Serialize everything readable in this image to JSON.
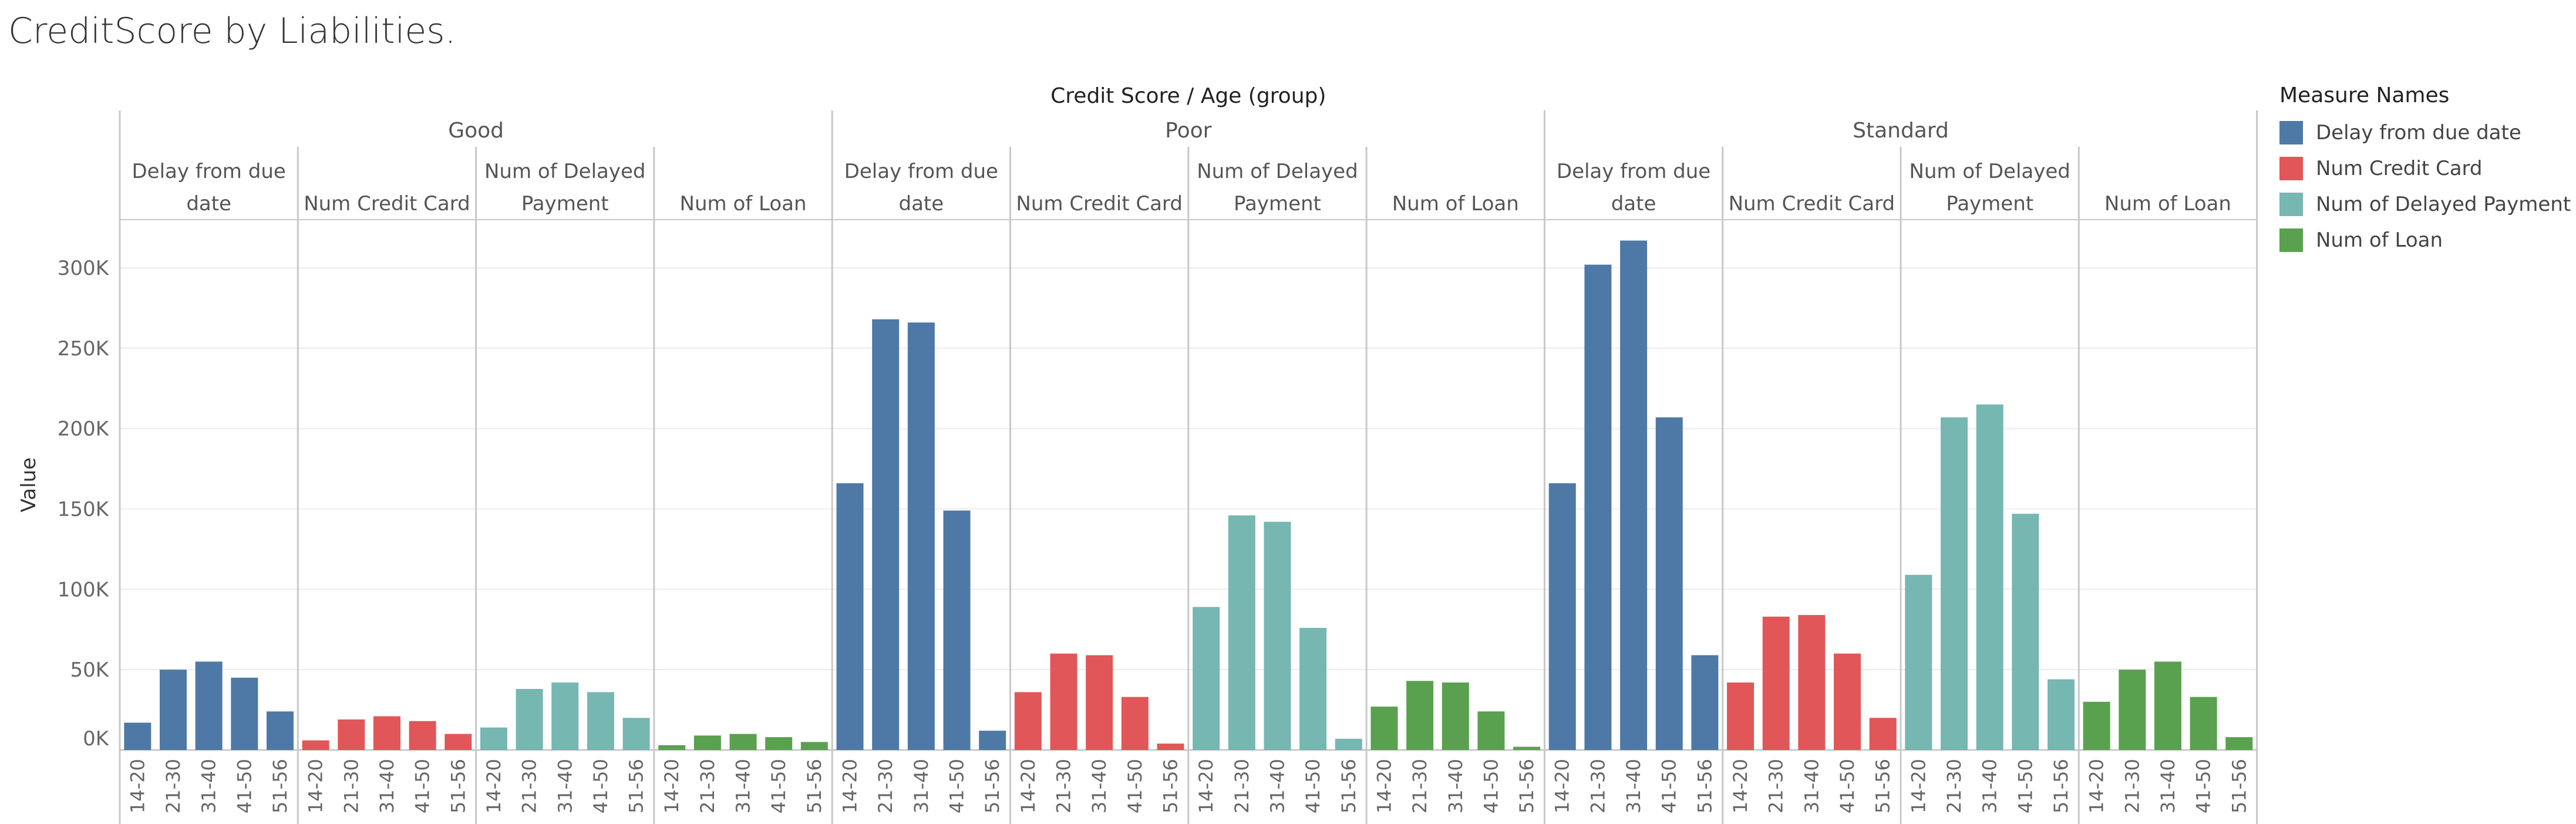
{
  "title": "CreditScore by Liabilities.",
  "chart_data": {
    "type": "bar",
    "header": "Credit Score  /  Age (group)",
    "ylabel": "Value",
    "ylim": [
      0,
      330000
    ],
    "yticks": [
      0,
      50000,
      100000,
      150000,
      200000,
      250000,
      300000
    ],
    "ytick_labels": [
      "0K",
      "50K",
      "100K",
      "150K",
      "200K",
      "250K",
      "300K"
    ],
    "grid": true,
    "legend_position": "right",
    "legend_title": "Measure Names",
    "categories": [
      "14-20",
      "21-30",
      "31-40",
      "41-50",
      "51-56"
    ],
    "measures": [
      {
        "name": "Delay from due date",
        "header": [
          "Delay from due",
          "date"
        ],
        "color": "#4e79a7"
      },
      {
        "name": "Num Credit Card",
        "header": [
          "Num Credit Card"
        ],
        "color": "#e15759"
      },
      {
        "name": "Num of Delayed Payment",
        "header": [
          "Num of Delayed",
          "Payment"
        ],
        "color": "#76b7b2"
      },
      {
        "name": "Num of Loan",
        "header": [
          "Num of Loan"
        ],
        "color": "#59a14f"
      }
    ],
    "groups": [
      {
        "name": "Good",
        "series": [
          {
            "measure": "Delay from due date",
            "values": [
              17000,
              50000,
              55000,
              45000,
              24000
            ]
          },
          {
            "measure": "Num Credit Card",
            "values": [
              6000,
              19000,
              21000,
              18000,
              10000
            ]
          },
          {
            "measure": "Num of Delayed Payment",
            "values": [
              14000,
              38000,
              42000,
              36000,
              20000
            ]
          },
          {
            "measure": "Num of Loan",
            "values": [
              3000,
              9000,
              10000,
              8000,
              5000
            ]
          }
        ]
      },
      {
        "name": "Poor",
        "series": [
          {
            "measure": "Delay from due date",
            "values": [
              166000,
              268000,
              266000,
              149000,
              12000
            ]
          },
          {
            "measure": "Num Credit Card",
            "values": [
              36000,
              60000,
              59000,
              33000,
              4000
            ]
          },
          {
            "measure": "Num of Delayed Payment",
            "values": [
              89000,
              146000,
              142000,
              76000,
              7000
            ]
          },
          {
            "measure": "Num of Loan",
            "values": [
              27000,
              43000,
              42000,
              24000,
              2000
            ]
          }
        ]
      },
      {
        "name": "Standard",
        "series": [
          {
            "measure": "Delay from due date",
            "values": [
              166000,
              302000,
              317000,
              207000,
              59000
            ]
          },
          {
            "measure": "Num Credit Card",
            "values": [
              42000,
              83000,
              84000,
              60000,
              20000
            ]
          },
          {
            "measure": "Num of Delayed Payment",
            "values": [
              109000,
              207000,
              215000,
              147000,
              44000
            ]
          },
          {
            "measure": "Num of Loan",
            "values": [
              30000,
              50000,
              55000,
              33000,
              8000
            ]
          }
        ]
      }
    ]
  }
}
